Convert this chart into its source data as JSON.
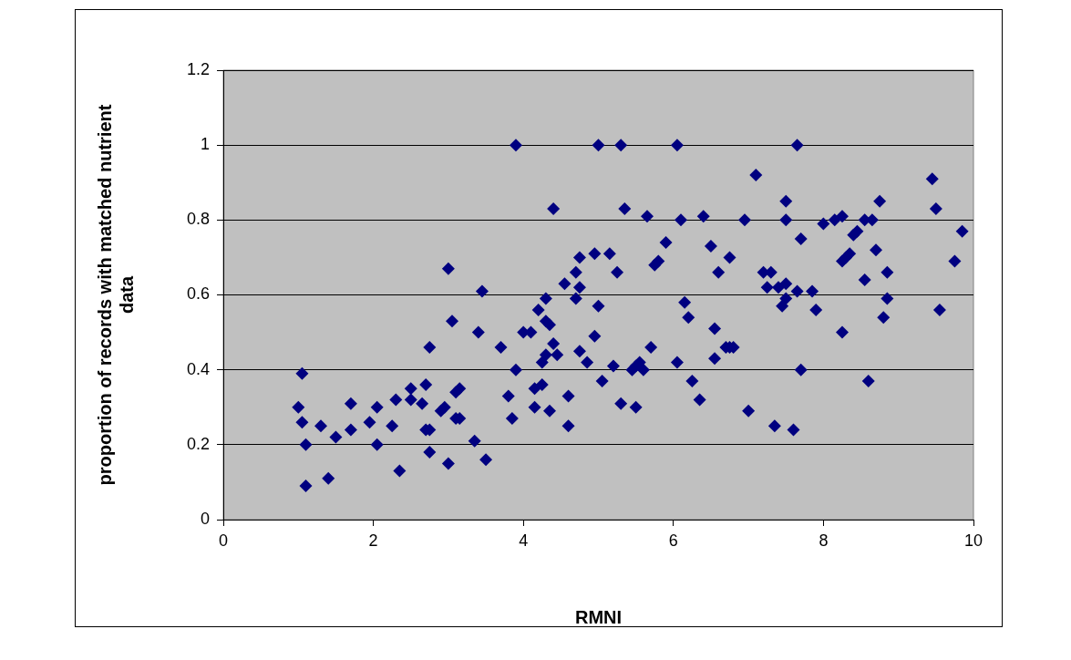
{
  "chart_data": {
    "type": "scatter",
    "xlabel": "RMNI",
    "ylabel": "proportion of records with matched nutrient data",
    "xlim": [
      0,
      10
    ],
    "xticks": [
      0,
      2,
      4,
      6,
      8,
      10
    ],
    "ylim": [
      0,
      1.2
    ],
    "yticks": [
      0,
      0.2,
      0.4,
      0.6,
      0.8,
      1,
      1.2
    ],
    "grid": "y",
    "marker": "diamond",
    "series": [
      {
        "color": "#000080",
        "x": [
          1.0,
          1.05,
          1.05,
          1.1,
          1.1,
          1.3,
          1.4,
          1.5,
          1.7,
          1.7,
          1.95,
          2.05,
          2.05,
          2.25,
          2.3,
          2.35,
          2.5,
          2.5,
          2.65,
          2.7,
          2.7,
          2.75,
          2.75,
          2.75,
          2.9,
          2.95,
          3.0,
          3.0,
          3.05,
          3.1,
          3.1,
          3.15,
          3.15,
          3.35,
          3.4,
          3.45,
          3.5,
          3.7,
          3.8,
          3.85,
          3.9,
          3.9,
          4.0,
          4.1,
          4.15,
          4.15,
          4.2,
          4.25,
          4.25,
          4.3,
          4.3,
          4.3,
          4.35,
          4.35,
          4.4,
          4.4,
          4.45,
          4.55,
          4.6,
          4.6,
          4.7,
          4.7,
          4.75,
          4.75,
          4.75,
          4.85,
          4.95,
          4.95,
          5.0,
          5.0,
          5.05,
          5.15,
          5.2,
          5.25,
          5.3,
          5.3,
          5.35,
          5.45,
          5.5,
          5.5,
          5.55,
          5.6,
          5.65,
          5.7,
          5.75,
          5.8,
          5.9,
          6.05,
          6.05,
          6.1,
          6.15,
          6.2,
          6.25,
          6.35,
          6.4,
          6.5,
          6.55,
          6.55,
          6.6,
          6.7,
          6.75,
          6.75,
          6.8,
          6.95,
          7.0,
          7.1,
          7.2,
          7.25,
          7.3,
          7.35,
          7.4,
          7.45,
          7.5,
          7.5,
          7.5,
          7.5,
          7.6,
          7.65,
          7.65,
          7.7,
          7.7,
          7.85,
          7.9,
          8.0,
          8.15,
          8.25,
          8.25,
          8.25,
          8.3,
          8.35,
          8.4,
          8.45,
          8.55,
          8.55,
          8.6,
          8.65,
          8.7,
          8.75,
          8.8,
          8.85,
          8.85,
          9.45,
          9.5,
          9.55,
          9.75,
          9.85
        ],
        "values": [
          0.3,
          0.39,
          0.26,
          0.2,
          0.09,
          0.25,
          0.11,
          0.22,
          0.31,
          0.24,
          0.26,
          0.2,
          0.3,
          0.25,
          0.32,
          0.13,
          0.35,
          0.32,
          0.31,
          0.24,
          0.36,
          0.24,
          0.18,
          0.46,
          0.29,
          0.3,
          0.15,
          0.67,
          0.53,
          0.34,
          0.27,
          0.35,
          0.27,
          0.21,
          0.5,
          0.61,
          0.16,
          0.46,
          0.33,
          0.27,
          1.0,
          0.4,
          0.5,
          0.5,
          0.35,
          0.3,
          0.56,
          0.42,
          0.36,
          0.53,
          0.59,
          0.44,
          0.52,
          0.29,
          0.83,
          0.47,
          0.44,
          0.63,
          0.25,
          0.33,
          0.59,
          0.66,
          0.7,
          0.62,
          0.45,
          0.42,
          0.71,
          0.49,
          1.0,
          0.57,
          0.37,
          0.71,
          0.41,
          0.66,
          1.0,
          0.31,
          0.83,
          0.4,
          0.41,
          0.3,
          0.42,
          0.4,
          0.81,
          0.46,
          0.68,
          0.69,
          0.74,
          1.0,
          0.42,
          0.8,
          0.58,
          0.54,
          0.37,
          0.32,
          0.81,
          0.73,
          0.51,
          0.43,
          0.66,
          0.46,
          0.7,
          0.46,
          0.46,
          0.8,
          0.29,
          0.92,
          0.66,
          0.62,
          0.66,
          0.25,
          0.62,
          0.57,
          0.59,
          0.85,
          0.8,
          0.63,
          0.24,
          1.0,
          0.61,
          0.75,
          0.4,
          0.61,
          0.56,
          0.79,
          0.8,
          0.81,
          0.69,
          0.5,
          0.7,
          0.71,
          0.76,
          0.77,
          0.64,
          0.8,
          0.37,
          0.8,
          0.72,
          0.85,
          0.54,
          0.66,
          0.59,
          0.91,
          0.83,
          0.56,
          0.69,
          0.77
        ]
      }
    ]
  }
}
